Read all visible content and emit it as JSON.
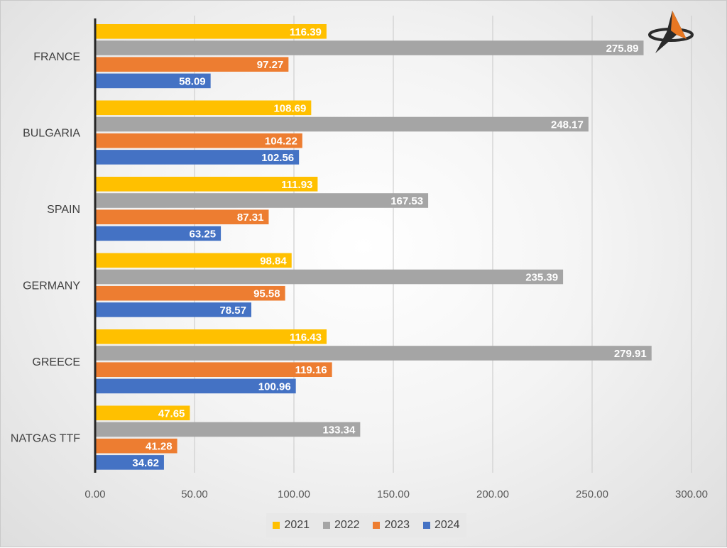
{
  "chart_data": {
    "type": "bar",
    "orientation": "horizontal",
    "categories": [
      "FRANCE",
      "BULGARIA",
      "SPAIN",
      "GERMANY",
      "GREECE",
      "NATGAS TTF"
    ],
    "series": [
      {
        "name": "2021",
        "color": "#FFC000",
        "values": [
          116.39,
          108.69,
          111.93,
          98.84,
          116.43,
          47.65
        ]
      },
      {
        "name": "2022",
        "color": "#A5A5A5",
        "values": [
          275.89,
          248.17,
          167.53,
          235.39,
          279.91,
          133.34
        ]
      },
      {
        "name": "2023",
        "color": "#ED7D31",
        "values": [
          97.27,
          104.22,
          87.31,
          95.58,
          119.16,
          41.28
        ]
      },
      {
        "name": "2024",
        "color": "#4472C4",
        "values": [
          58.09,
          102.56,
          63.25,
          78.57,
          100.96,
          34.62
        ]
      }
    ],
    "value_labels": [
      [
        "116.39",
        "108.69",
        "111.93",
        "98.84",
        "116.43",
        "47.65"
      ],
      [
        "275.89",
        "248.17",
        "167.53",
        "235.39",
        "279.91",
        "133.34"
      ],
      [
        "97.27",
        "104.22",
        "87.31",
        "95.58",
        "119.16",
        "41.28"
      ],
      [
        "58.09",
        "102.56",
        "63.25",
        "78.57",
        "100.96",
        "34.62"
      ]
    ],
    "x_ticks": [
      "0.00",
      "50.00",
      "100.00",
      "150.00",
      "200.00",
      "250.00",
      "300.00"
    ],
    "xlim": [
      0,
      300
    ],
    "grid": true,
    "legend_position": "bottom",
    "title": "",
    "xlabel": "",
    "ylabel": ""
  },
  "legend": {
    "items": [
      {
        "label": "2021",
        "color": "#FFC000"
      },
      {
        "label": "2022",
        "color": "#A5A5A5"
      },
      {
        "label": "2023",
        "color": "#ED7D31"
      },
      {
        "label": "2024",
        "color": "#4472C4"
      }
    ]
  },
  "logo": {
    "icon": "compass-arrow-icon",
    "colors": [
      "#E87722",
      "#2B2B2B"
    ]
  }
}
